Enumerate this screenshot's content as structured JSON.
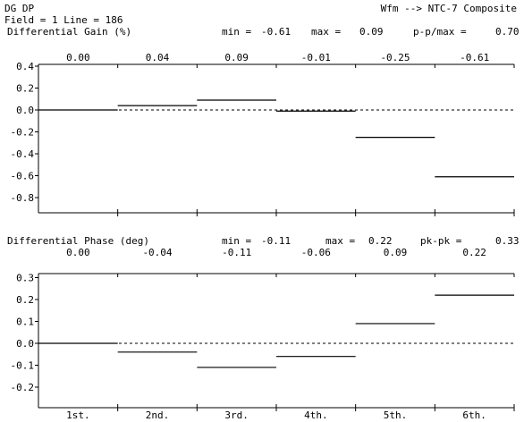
{
  "header": {
    "title": "DG DP",
    "mode": "Wfm --> NTC-7 Composite",
    "field_line": "Field = 1 Line = 186"
  },
  "chart_data": [
    {
      "type": "step",
      "title": "Differential Gain (%)",
      "stats": {
        "min_label": "min =",
        "min_value": "-0.61",
        "max_label": "max =",
        "max_value": "0.09",
        "range_label": "p-p/max =",
        "range_value": "0.70"
      },
      "categories": [
        "1st.",
        "2nd.",
        "3rd.",
        "4th.",
        "5th.",
        "6th."
      ],
      "values": [
        0.0,
        0.04,
        0.09,
        -0.01,
        -0.25,
        -0.61
      ],
      "value_labels": [
        "0.00",
        "0.04",
        "0.09",
        "-0.01",
        "-0.25",
        "-0.61"
      ],
      "yticks": [
        "0.4",
        "0.2",
        "0.0",
        "-0.2",
        "-0.4",
        "-0.6",
        "-0.8"
      ],
      "ylim": [
        -0.9,
        0.42
      ],
      "zero_line": "dashed"
    },
    {
      "type": "step",
      "title": "Differential Phase (deg)",
      "stats": {
        "min_label": "min =",
        "min_value": "-0.11",
        "max_label": "max =",
        "max_value": "0.22",
        "range_label": "pk-pk =",
        "range_value": "0.33"
      },
      "categories": [
        "1st.",
        "2nd.",
        "3rd.",
        "4th.",
        "5th.",
        "6th."
      ],
      "values": [
        0.0,
        -0.04,
        -0.11,
        -0.06,
        0.09,
        0.22
      ],
      "value_labels": [
        "0.00",
        "-0.04",
        "-0.11",
        "-0.06",
        "0.09",
        "0.22"
      ],
      "yticks": [
        "0.3",
        "0.2",
        "0.1",
        "0.0",
        "-0.1",
        "-0.2"
      ],
      "ylim": [
        -0.29,
        0.36
      ],
      "zero_line": "dashed"
    }
  ]
}
